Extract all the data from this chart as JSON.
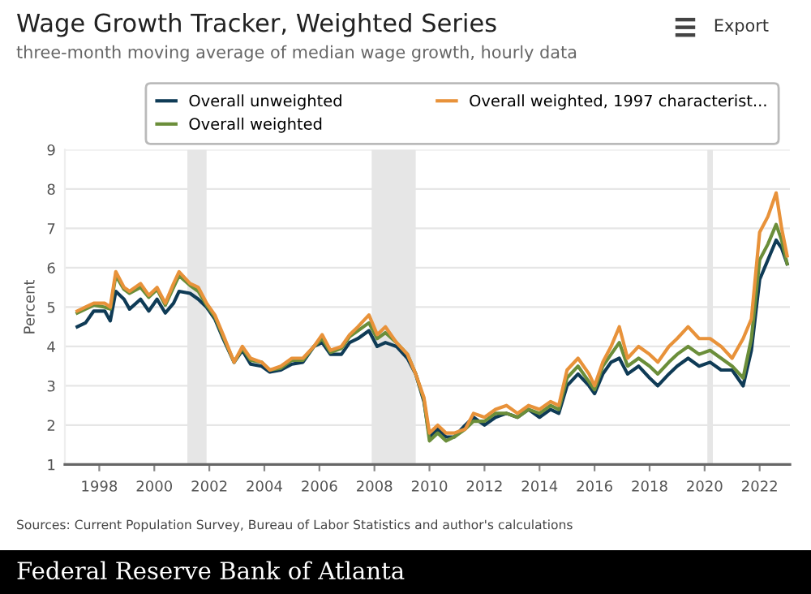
{
  "chart_data": {
    "type": "line",
    "title": "Wage Growth Tracker, Weighted Series",
    "subtitle": "three-month moving average of median wage growth, hourly data",
    "ylabel": "Percent",
    "annotations": [
      "Export",
      "Sources: Current Population Survey, Bureau of Labor Statistics and author's calculations",
      "Federal Reserve Bank of Atlanta"
    ],
    "x": [
      1997.2,
      1997.5,
      1997.8,
      1998.2,
      1998.4,
      1998.6,
      1998.9,
      1999.1,
      1999.5,
      1999.8,
      2000.1,
      2000.4,
      2000.7,
      2000.9,
      2001.3,
      2001.6,
      2001.9,
      2002.2,
      2002.5,
      2002.9,
      2003.2,
      2003.5,
      2003.9,
      2004.2,
      2004.6,
      2005.0,
      2005.4,
      2005.8,
      2006.1,
      2006.4,
      2006.8,
      2007.1,
      2007.4,
      2007.8,
      2008.1,
      2008.4,
      2008.8,
      2009.2,
      2009.5,
      2009.8,
      2010.0,
      2010.3,
      2010.6,
      2010.9,
      2011.3,
      2011.6,
      2012.0,
      2012.4,
      2012.8,
      2013.2,
      2013.6,
      2014.0,
      2014.4,
      2014.7,
      2015.0,
      2015.4,
      2015.8,
      2016.0,
      2016.3,
      2016.6,
      2016.9,
      2017.2,
      2017.6,
      2018.0,
      2018.3,
      2018.7,
      2019.0,
      2019.4,
      2019.8,
      2020.2,
      2020.6,
      2021.0,
      2021.4,
      2021.7,
      2022.0,
      2022.3,
      2022.6,
      2022.8,
      2023.0
    ],
    "series": [
      {
        "name": "Overall unweighted",
        "color": "#0f3b56",
        "values": [
          4.5,
          4.6,
          4.9,
          4.9,
          4.65,
          5.4,
          5.2,
          4.95,
          5.2,
          4.9,
          5.2,
          4.85,
          5.1,
          5.4,
          5.35,
          5.2,
          5.0,
          4.7,
          4.2,
          3.6,
          3.9,
          3.55,
          3.5,
          3.35,
          3.4,
          3.55,
          3.6,
          4.0,
          4.1,
          3.8,
          3.8,
          4.1,
          4.2,
          4.4,
          4.0,
          4.1,
          4.0,
          3.7,
          3.3,
          2.6,
          1.7,
          1.9,
          1.7,
          1.7,
          2.0,
          2.2,
          2.0,
          2.2,
          2.3,
          2.2,
          2.4,
          2.2,
          2.4,
          2.3,
          3.0,
          3.3,
          3.0,
          2.8,
          3.3,
          3.6,
          3.7,
          3.3,
          3.5,
          3.2,
          3.0,
          3.3,
          3.5,
          3.7,
          3.5,
          3.6,
          3.4,
          3.4,
          3.0,
          3.9,
          5.7,
          6.2,
          6.7,
          6.5,
          6.1
        ]
      },
      {
        "name": "Overall weighted",
        "color": "#6b8e3a",
        "values": [
          4.85,
          4.95,
          5.05,
          5.0,
          4.95,
          5.8,
          5.45,
          5.35,
          5.5,
          5.25,
          5.45,
          5.05,
          5.5,
          5.8,
          5.55,
          5.4,
          5.05,
          4.75,
          4.25,
          3.6,
          3.95,
          3.65,
          3.6,
          3.4,
          3.45,
          3.65,
          3.65,
          4.0,
          4.2,
          3.85,
          3.95,
          4.25,
          4.4,
          4.6,
          4.2,
          4.35,
          4.1,
          3.8,
          3.3,
          2.65,
          1.6,
          1.8,
          1.6,
          1.7,
          1.9,
          2.1,
          2.1,
          2.3,
          2.3,
          2.2,
          2.4,
          2.3,
          2.5,
          2.4,
          3.2,
          3.5,
          3.1,
          2.9,
          3.5,
          3.8,
          4.1,
          3.5,
          3.7,
          3.5,
          3.3,
          3.6,
          3.8,
          4.0,
          3.8,
          3.9,
          3.7,
          3.5,
          3.2,
          4.2,
          6.2,
          6.6,
          7.1,
          6.7,
          6.1
        ]
      },
      {
        "name": "Overall weighted, 1997 characterist...",
        "color": "#e8923a",
        "values": [
          4.9,
          5.0,
          5.1,
          5.1,
          5.0,
          5.9,
          5.5,
          5.4,
          5.6,
          5.3,
          5.5,
          5.1,
          5.6,
          5.9,
          5.6,
          5.5,
          5.1,
          4.8,
          4.3,
          3.6,
          4.0,
          3.7,
          3.6,
          3.4,
          3.5,
          3.7,
          3.7,
          4.0,
          4.3,
          3.9,
          4.0,
          4.3,
          4.5,
          4.8,
          4.3,
          4.5,
          4.1,
          3.8,
          3.3,
          2.7,
          1.8,
          2.0,
          1.8,
          1.8,
          1.9,
          2.3,
          2.2,
          2.4,
          2.5,
          2.3,
          2.5,
          2.4,
          2.6,
          2.5,
          3.4,
          3.7,
          3.3,
          3.0,
          3.6,
          4.0,
          4.5,
          3.7,
          4.0,
          3.8,
          3.6,
          4.0,
          4.2,
          4.5,
          4.2,
          4.2,
          4.0,
          3.7,
          4.2,
          4.7,
          6.9,
          7.3,
          7.9,
          7.0,
          6.3
        ]
      }
    ],
    "bands": [
      {
        "axis": "x",
        "from": 2001.2,
        "to": 2001.9,
        "color": "#e6e6e6"
      },
      {
        "axis": "x",
        "from": 2007.9,
        "to": 2009.5,
        "color": "#e6e6e6"
      },
      {
        "axis": "x",
        "from": 2020.1,
        "to": 2020.3,
        "color": "#e6e6e6"
      }
    ],
    "xlim": [
      1996.75,
      2023.1
    ],
    "xticks": [
      1998,
      2000,
      2002,
      2004,
      2006,
      2008,
      2010,
      2012,
      2014,
      2016,
      2018,
      2020,
      2022
    ],
    "ylim": [
      1,
      9
    ],
    "yticks": [
      1,
      2,
      3,
      4,
      5,
      6,
      7,
      8,
      9
    ],
    "grid": "y",
    "legend": "top",
    "marker": "none",
    "line_style": "solid"
  }
}
